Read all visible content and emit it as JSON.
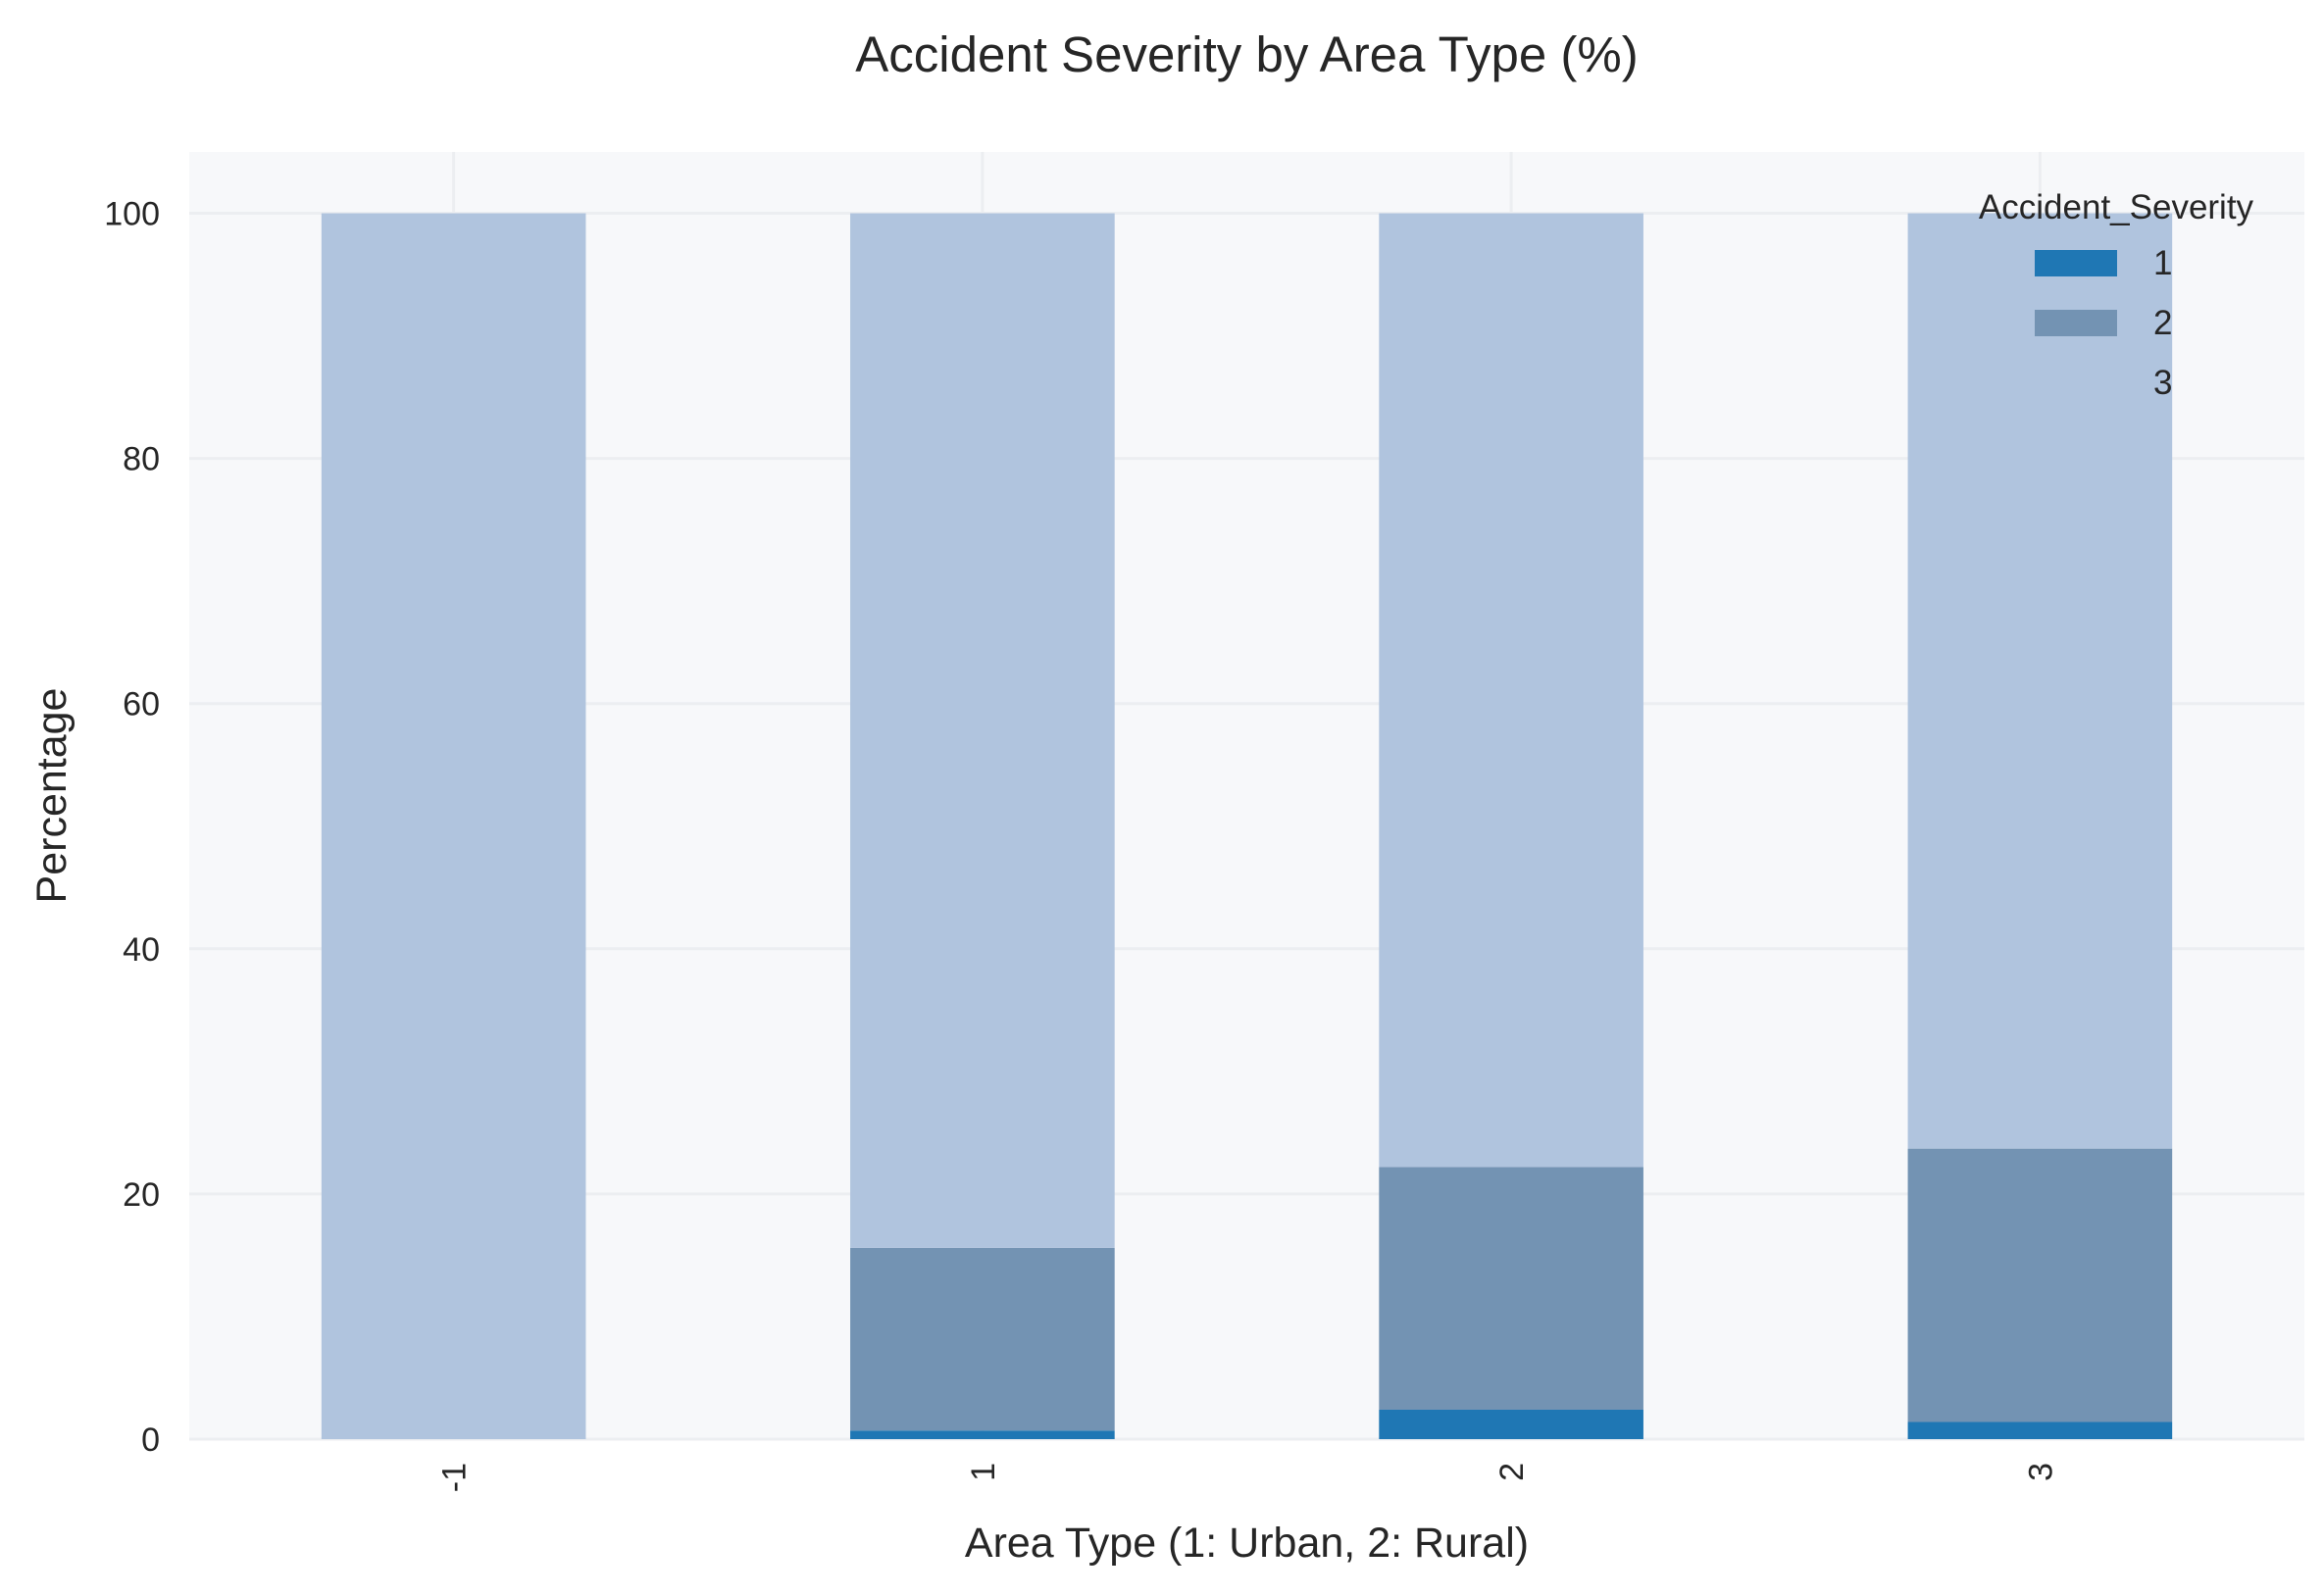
{
  "chart_data": {
    "type": "bar",
    "stacked": true,
    "title": "Accident Severity by Area Type (%)",
    "xlabel": "Area Type (1: Urban, 2: Rural)",
    "ylabel": "Percentage",
    "categories": [
      "-1",
      "1",
      "2",
      "3"
    ],
    "ylim": [
      0,
      105
    ],
    "yticks": [
      0,
      20,
      40,
      60,
      80,
      100
    ],
    "grid": true,
    "legend": {
      "title": "Accident_Severity",
      "placement": "top-right"
    },
    "series": [
      {
        "name": "1",
        "color": "#1f77b4",
        "values": [
          0.0,
          0.7,
          2.4,
          1.4
        ]
      },
      {
        "name": "2",
        "color": "#7393b3",
        "values": [
          0.0,
          14.9,
          19.8,
          22.3
        ]
      },
      {
        "name": "3",
        "color": "#b0c4de",
        "values": [
          100.0,
          84.4,
          77.8,
          76.3
        ]
      }
    ],
    "legend_entries": [
      {
        "label": "1",
        "color": "#1f77b4"
      },
      {
        "label": "2",
        "color": "#7393b3"
      },
      {
        "label": "3",
        "color": "#b0c4de"
      }
    ]
  }
}
